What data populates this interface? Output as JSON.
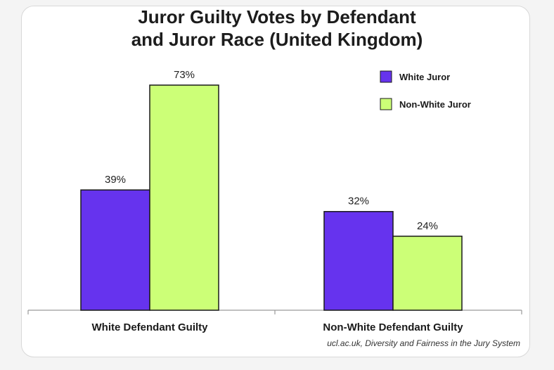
{
  "chart_data": {
    "type": "bar",
    "title_line1": "Juror Guilty Votes by Defendant",
    "title_line2": "and Juror Race (United Kingdom)",
    "categories": [
      "White Defendant Guilty",
      "Non-White Defendant Guilty"
    ],
    "series": [
      {
        "name": "White Juror",
        "values": [
          39,
          32
        ],
        "labels": [
          "39%",
          "32%"
        ],
        "color": "#6633ee"
      },
      {
        "name": "Non-White Juror",
        "values": [
          73,
          24
        ],
        "labels": [
          "73%",
          "24%"
        ],
        "color": "#ccff77"
      }
    ],
    "ylim": [
      0,
      80
    ],
    "legend_position": "top-right",
    "grid": false,
    "source": "ucl.ac.uk, Diversity and Fairness in the Jury System"
  }
}
